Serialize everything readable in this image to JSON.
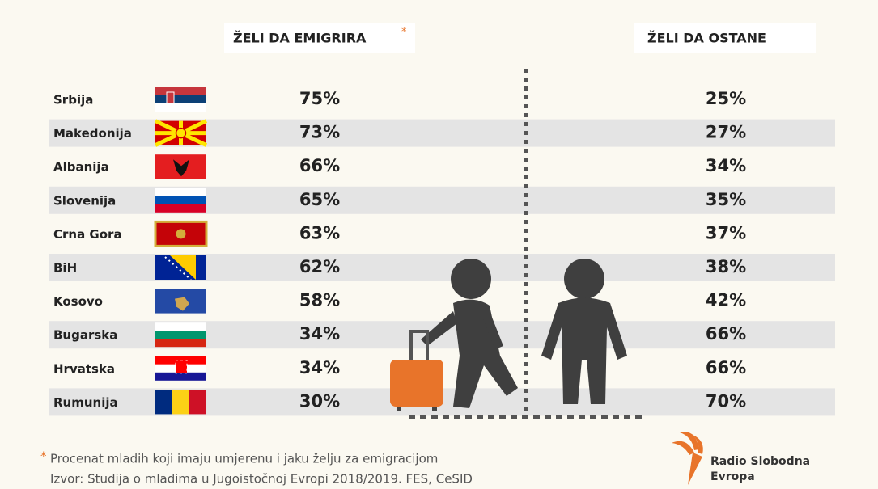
{
  "header": {
    "emigrate": "ŽELI DA EMIGRIRA",
    "emigrate_mark": "*",
    "stay": "ŽELI DA OSTANE"
  },
  "table": {
    "rows": [
      [
        "Srbija",
        "75%",
        "25%"
      ],
      [
        "Makedonija",
        "73%",
        "27%"
      ],
      [
        "Albanija",
        "66%",
        "34%"
      ],
      [
        "Slovenija",
        "65%",
        "35%"
      ],
      [
        "Crna Gora",
        "63%",
        "37%"
      ],
      [
        "BiH",
        "62%",
        "38%"
      ],
      [
        "Kosovo",
        "58%",
        "42%"
      ],
      [
        "Bugarska",
        "34%",
        "66%"
      ],
      [
        "Hrvatska",
        "34%",
        "66%"
      ],
      [
        "Rumunija",
        "30%",
        "70%"
      ]
    ]
  },
  "footer": {
    "note_mark": "*",
    "note": "Procenat mladih koji imaju umjerenu i jaku želju za emigracijom",
    "source": "Izvor: Studija o mladima u Jugoistočnoj Evropi 2018/2019. FES, CeSID"
  },
  "logo": {
    "line1": "Radio Slobodna",
    "line2": "Evropa"
  }
}
